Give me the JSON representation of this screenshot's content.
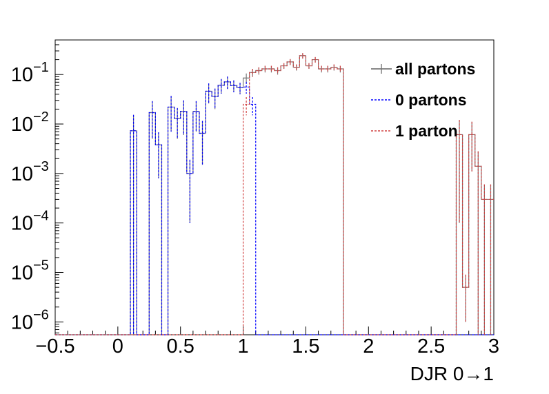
{
  "chart_data": {
    "type": "histogram-step",
    "title": "",
    "xlabel": "DJR 0→1",
    "ylabel": "",
    "xlim": [
      -0.5,
      3.0
    ],
    "ylim": [
      5.5e-07,
      0.5
    ],
    "y_scale": "log",
    "grid": false,
    "legend_position": "top-right",
    "x_ticks": [
      {
        "v": -0.5,
        "label": "−0.5"
      },
      {
        "v": 0,
        "label": "0"
      },
      {
        "v": 0.5,
        "label": "0.5"
      },
      {
        "v": 1,
        "label": "1"
      },
      {
        "v": 1.5,
        "label": "1.5"
      },
      {
        "v": 2,
        "label": "2"
      },
      {
        "v": 2.5,
        "label": "2.5"
      },
      {
        "v": 3,
        "label": "3"
      }
    ],
    "y_ticks": [
      {
        "v": 1e-06,
        "base": "10",
        "exp": "−6"
      },
      {
        "v": 1e-05,
        "base": "10",
        "exp": "−5"
      },
      {
        "v": 0.0001,
        "base": "10",
        "exp": "−4"
      },
      {
        "v": 0.001,
        "base": "10",
        "exp": "−3"
      },
      {
        "v": 0.01,
        "base": "10",
        "exp": "−2"
      },
      {
        "v": 0.1,
        "base": "10",
        "exp": "−1"
      }
    ],
    "bin_width": 0.05,
    "series": [
      {
        "name": "all partons",
        "color": "#777777",
        "dash": "",
        "bins": [
          {
            "x": 0.1,
            "y": 0.0073,
            "err": 0.008
          },
          {
            "x": 0.25,
            "y": 0.017,
            "err": 0.012
          },
          {
            "x": 0.3,
            "y": 0.0038,
            "err": 0.003
          },
          {
            "x": 0.4,
            "y": 0.022,
            "err": 0.015
          },
          {
            "x": 0.45,
            "y": 0.013,
            "err": 0.008
          },
          {
            "x": 0.5,
            "y": 0.018,
            "err": 0.012
          },
          {
            "x": 0.55,
            "y": 0.001,
            "err": 0.0009
          },
          {
            "x": 0.6,
            "y": 0.018,
            "err": 0.011
          },
          {
            "x": 0.65,
            "y": 0.0065,
            "err": 0.005
          },
          {
            "x": 0.7,
            "y": 0.046,
            "err": 0.02
          },
          {
            "x": 0.75,
            "y": 0.036,
            "err": 0.016
          },
          {
            "x": 0.8,
            "y": 0.061,
            "err": 0.02
          },
          {
            "x": 0.85,
            "y": 0.071,
            "err": 0.02
          },
          {
            "x": 0.9,
            "y": 0.06,
            "err": 0.016
          },
          {
            "x": 0.95,
            "y": 0.054,
            "err": 0.014
          },
          {
            "x": 1.0,
            "y": 0.085,
            "err": 0.02
          },
          {
            "x": 1.05,
            "y": 0.11,
            "err": 0.02
          },
          {
            "x": 1.1,
            "y": 0.12,
            "err": 0.02
          },
          {
            "x": 1.15,
            "y": 0.13,
            "err": 0.02
          },
          {
            "x": 1.2,
            "y": 0.13,
            "err": 0.02
          },
          {
            "x": 1.25,
            "y": 0.12,
            "err": 0.02
          },
          {
            "x": 1.3,
            "y": 0.15,
            "err": 0.02
          },
          {
            "x": 1.35,
            "y": 0.18,
            "err": 0.025
          },
          {
            "x": 1.4,
            "y": 0.14,
            "err": 0.02
          },
          {
            "x": 1.45,
            "y": 0.24,
            "err": 0.03
          },
          {
            "x": 1.5,
            "y": 0.15,
            "err": 0.02
          },
          {
            "x": 1.55,
            "y": 0.2,
            "err": 0.025
          },
          {
            "x": 1.6,
            "y": 0.13,
            "err": 0.02
          },
          {
            "x": 1.65,
            "y": 0.13,
            "err": 0.02
          },
          {
            "x": 1.7,
            "y": 0.14,
            "err": 0.02
          },
          {
            "x": 1.75,
            "y": 0.13,
            "err": 0.02
          },
          {
            "x": 2.7,
            "y": 0.0061,
            "err": 0.006
          },
          {
            "x": 2.75,
            "y": 5e-06,
            "err": 4e-06
          },
          {
            "x": 2.8,
            "y": 0.0061,
            "err": 0.005
          },
          {
            "x": 2.85,
            "y": 0.0014,
            "err": 0.0014
          },
          {
            "x": 2.9,
            "y": 0.0003,
            "err": 0.0003
          },
          {
            "x": 2.95,
            "y": 0.0003,
            "err": 0.0003
          }
        ]
      },
      {
        "name": "0 partons",
        "color": "#0000ff",
        "dash": "3,2",
        "bins": [
          {
            "x": 0.1,
            "y": 0.0073,
            "err": 0.008
          },
          {
            "x": 0.25,
            "y": 0.017,
            "err": 0.012
          },
          {
            "x": 0.3,
            "y": 0.0038,
            "err": 0.003
          },
          {
            "x": 0.4,
            "y": 0.022,
            "err": 0.015
          },
          {
            "x": 0.45,
            "y": 0.013,
            "err": 0.008
          },
          {
            "x": 0.5,
            "y": 0.018,
            "err": 0.012
          },
          {
            "x": 0.55,
            "y": 0.001,
            "err": 0.0009
          },
          {
            "x": 0.6,
            "y": 0.018,
            "err": 0.011
          },
          {
            "x": 0.65,
            "y": 0.0065,
            "err": 0.005
          },
          {
            "x": 0.7,
            "y": 0.046,
            "err": 0.02
          },
          {
            "x": 0.75,
            "y": 0.036,
            "err": 0.016
          },
          {
            "x": 0.8,
            "y": 0.061,
            "err": 0.02
          },
          {
            "x": 0.85,
            "y": 0.071,
            "err": 0.02
          },
          {
            "x": 0.9,
            "y": 0.06,
            "err": 0.016
          },
          {
            "x": 0.95,
            "y": 0.054,
            "err": 0.014
          },
          {
            "x": 1.0,
            "y": 0.056,
            "err": 0.015
          },
          {
            "x": 1.05,
            "y": 0.025,
            "err": 0.01
          }
        ]
      },
      {
        "name": "1 parton",
        "color": "#d04040",
        "dash": "3,2",
        "bins": [
          {
            "x": 1.0,
            "y": 0.025,
            "err": 0.01
          },
          {
            "x": 1.05,
            "y": 0.11,
            "err": 0.02
          },
          {
            "x": 1.1,
            "y": 0.12,
            "err": 0.02
          },
          {
            "x": 1.15,
            "y": 0.13,
            "err": 0.02
          },
          {
            "x": 1.2,
            "y": 0.13,
            "err": 0.02
          },
          {
            "x": 1.25,
            "y": 0.12,
            "err": 0.02
          },
          {
            "x": 1.3,
            "y": 0.15,
            "err": 0.02
          },
          {
            "x": 1.35,
            "y": 0.18,
            "err": 0.025
          },
          {
            "x": 1.4,
            "y": 0.14,
            "err": 0.02
          },
          {
            "x": 1.45,
            "y": 0.24,
            "err": 0.03
          },
          {
            "x": 1.5,
            "y": 0.15,
            "err": 0.02
          },
          {
            "x": 1.55,
            "y": 0.2,
            "err": 0.025
          },
          {
            "x": 1.6,
            "y": 0.13,
            "err": 0.02
          },
          {
            "x": 1.65,
            "y": 0.13,
            "err": 0.02
          },
          {
            "x": 1.7,
            "y": 0.14,
            "err": 0.02
          },
          {
            "x": 1.75,
            "y": 0.13,
            "err": 0.02
          },
          {
            "x": 2.7,
            "y": 0.0061,
            "err": 0.006
          },
          {
            "x": 2.75,
            "y": 5e-06,
            "err": 4e-06
          },
          {
            "x": 2.8,
            "y": 0.0061,
            "err": 0.005
          },
          {
            "x": 2.85,
            "y": 0.0014,
            "err": 0.0014
          },
          {
            "x": 2.9,
            "y": 0.0003,
            "err": 0.0003
          },
          {
            "x": 2.95,
            "y": 0.0003,
            "err": 0.0003
          }
        ]
      }
    ]
  }
}
